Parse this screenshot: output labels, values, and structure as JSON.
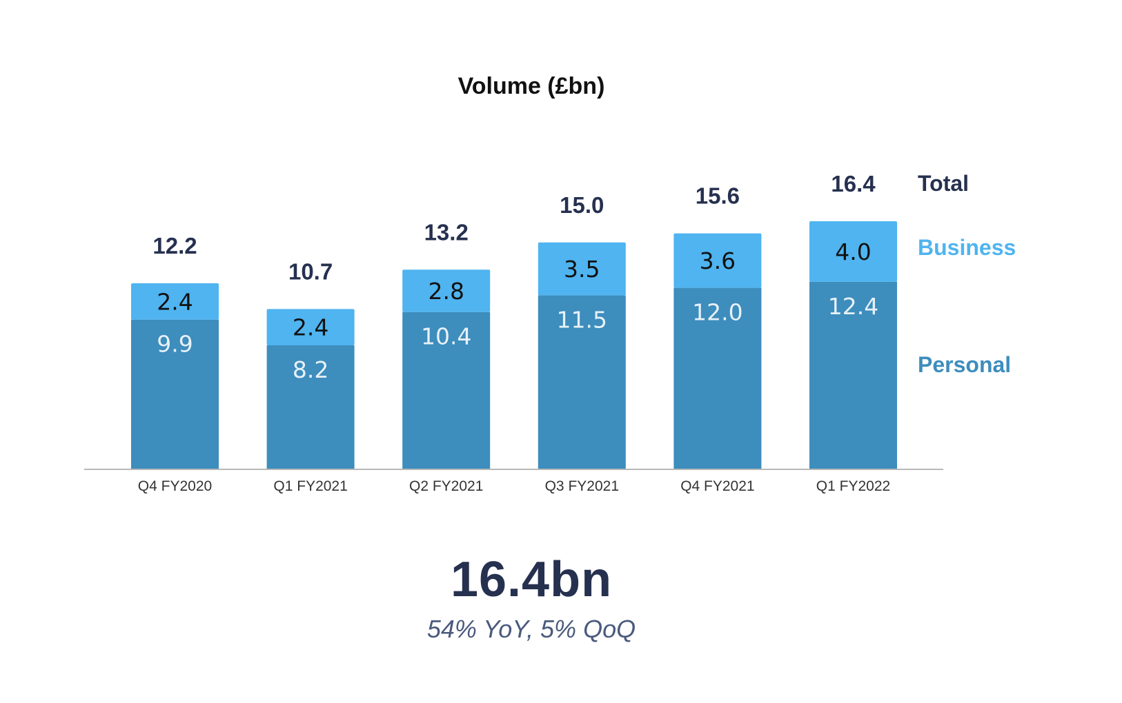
{
  "chart_data": {
    "type": "bar",
    "stacked": true,
    "title": "Volume (£bn)",
    "categories": [
      "Q4 FY2020",
      "Q1 FY2021",
      "Q2 FY2021",
      "Q3 FY2021",
      "Q4 FY2021",
      "Q1 FY2022"
    ],
    "series": [
      {
        "name": "Personal",
        "values": [
          9.9,
          8.2,
          10.4,
          11.5,
          12.0,
          12.4
        ],
        "color": "#3d8dbd",
        "label_color": "#e8f1f8"
      },
      {
        "name": "Business",
        "values": [
          2.4,
          2.4,
          2.8,
          3.5,
          3.6,
          4.0
        ],
        "color": "#4fb4f0",
        "label_color": "#111111"
      }
    ],
    "totals": {
      "name": "Total",
      "values": [
        12.2,
        10.7,
        13.2,
        15.0,
        15.6,
        16.4
      ],
      "color": "#26304f"
    },
    "legend": [
      {
        "name": "Total",
        "color": "#26304f"
      },
      {
        "name": "Business",
        "color": "#4fb4f0"
      },
      {
        "name": "Personal",
        "color": "#3d8dbd"
      }
    ],
    "legend_position": "right",
    "ylim": [
      0,
      16.4
    ],
    "xlabel": "",
    "ylabel": "",
    "grid": false
  },
  "summary": {
    "headline": "16.4bn",
    "subline": "54% YoY, 5% QoQ"
  }
}
